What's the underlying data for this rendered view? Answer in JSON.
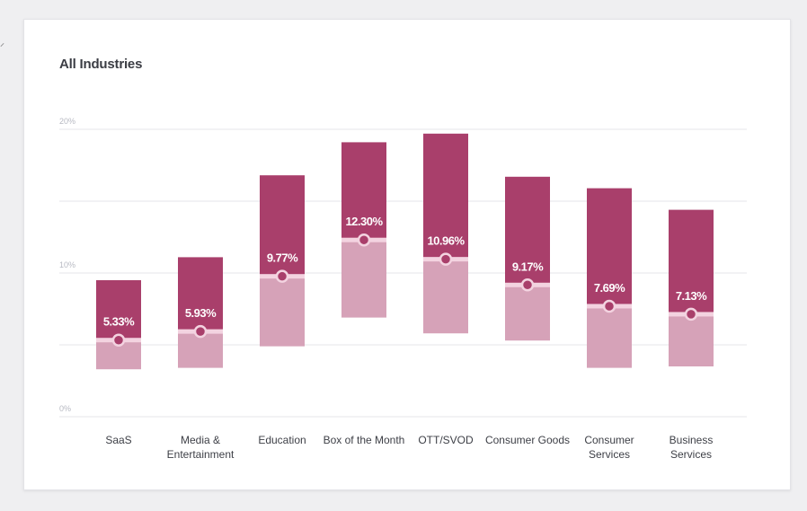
{
  "title": "All Industries",
  "colors": {
    "upper": "#a93f6b",
    "lower": "#d6a2b8",
    "marker_line": "#f3d3e0",
    "grid": "#e5e5ea",
    "tick_text": "#b7b9c2",
    "category_text": "#3d3f46",
    "value_text": "#ffffff"
  },
  "chart_data": {
    "type": "bar",
    "subtype": "floating-range-with-median",
    "title": "All Industries",
    "ylim": [
      0,
      20
    ],
    "yticks": [
      {
        "value": 0,
        "label": "0%"
      },
      {
        "value": 5,
        "label": ""
      },
      {
        "value": 10,
        "label": "10%"
      },
      {
        "value": 15,
        "label": ""
      },
      {
        "value": 20,
        "label": "20%"
      }
    ],
    "grid": true,
    "categories": [
      {
        "lines": [
          "SaaS"
        ]
      },
      {
        "lines": [
          "Media &",
          "Entertainment"
        ]
      },
      {
        "lines": [
          "Education"
        ]
      },
      {
        "lines": [
          "Box of the Month"
        ]
      },
      {
        "lines": [
          "OTT/SVOD"
        ]
      },
      {
        "lines": [
          "Consumer Goods"
        ]
      },
      {
        "lines": [
          "Consumer",
          "Services"
        ]
      },
      {
        "lines": [
          "Business",
          "Services"
        ]
      }
    ],
    "bars": [
      {
        "low": 3.3,
        "high": 9.5,
        "median": 5.33,
        "label": "5.33%"
      },
      {
        "low": 3.4,
        "high": 11.1,
        "median": 5.93,
        "label": "5.93%"
      },
      {
        "low": 4.9,
        "high": 16.8,
        "median": 9.77,
        "label": "9.77%"
      },
      {
        "low": 6.9,
        "high": 19.1,
        "median": 12.3,
        "label": "12.30%"
      },
      {
        "low": 5.8,
        "high": 19.7,
        "median": 10.96,
        "label": "10.96%"
      },
      {
        "low": 5.3,
        "high": 16.7,
        "median": 9.17,
        "label": "9.17%"
      },
      {
        "low": 3.4,
        "high": 15.9,
        "median": 7.69,
        "label": "7.69%"
      },
      {
        "low": 3.5,
        "high": 14.4,
        "median": 7.13,
        "label": "7.13%"
      }
    ]
  }
}
